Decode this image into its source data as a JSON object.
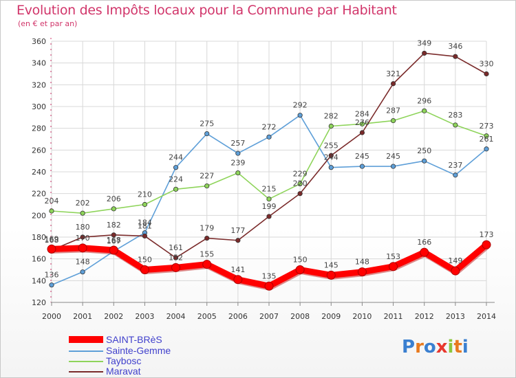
{
  "header": {
    "title": "Evolution des Impôts locaux pour la Commune par Habitant",
    "subtitle": "(en € et par an)"
  },
  "logo": {
    "text": "Proxiti",
    "letters": [
      "P",
      "r",
      "o",
      "x",
      "i",
      "t",
      "i"
    ],
    "colors": [
      "#3a7fd0",
      "#e87a1e",
      "#3a7fd0",
      "#e8382e",
      "#8cc63e",
      "#e87a1e",
      "#3a7fd0"
    ]
  },
  "colors": {
    "grid": "#d8d8d8",
    "axis": "#d1356a"
  },
  "chart_data": {
    "type": "line",
    "title": "Evolution des Impôts locaux pour la Commune par Habitant",
    "subtitle": "(en € et par an)",
    "xlabel": "",
    "ylabel": "",
    "x": [
      "2000",
      "2001",
      "2002",
      "2003",
      "2004",
      "2005",
      "2006",
      "2007",
      "2008",
      "2009",
      "2010",
      "2011",
      "2012",
      "2013",
      "2014"
    ],
    "ylim": [
      120,
      360
    ],
    "yticks": [
      120,
      140,
      160,
      180,
      200,
      220,
      240,
      260,
      280,
      300,
      320,
      340,
      360
    ],
    "grid": true,
    "legend_position": "bottom-left",
    "series": [
      {
        "name": "SAINT-BRèS",
        "color": "#ff0000",
        "values": [
          169,
          170,
          168,
          150,
          152,
          155,
          141,
          135,
          150,
          145,
          148,
          153,
          166,
          149,
          173
        ]
      },
      {
        "name": "Sainte-Gemme",
        "color": "#5e9fd8",
        "values": [
          136,
          148,
          167,
          184,
          244,
          275,
          257,
          272,
          292,
          244,
          245,
          245,
          250,
          237,
          261
        ]
      },
      {
        "name": "Taybosc",
        "color": "#8ed45a",
        "values": [
          204,
          202,
          206,
          210,
          224,
          227,
          239,
          215,
          229,
          282,
          284,
          287,
          296,
          283,
          273
        ]
      },
      {
        "name": "Maravat",
        "color": "#7a2a2a",
        "values": [
          168,
          180,
          182,
          181,
          161,
          179,
          177,
          199,
          220,
          255,
          276,
          321,
          349,
          346,
          330
        ]
      }
    ]
  }
}
